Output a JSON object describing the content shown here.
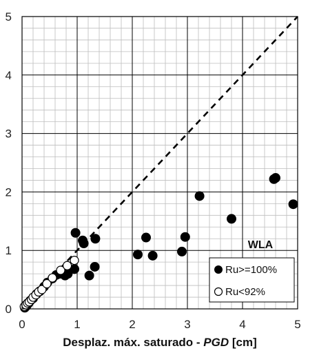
{
  "chart_data": {
    "type": "scatter",
    "title": "",
    "xlabel": {
      "prefix": "Desplaz. máx. saturado - ",
      "italic": "PGD",
      "suffix": " [cm]"
    },
    "ylabel": "",
    "xlim": [
      0,
      5
    ],
    "ylim": [
      0,
      5
    ],
    "x_ticks": [
      "0",
      "1",
      "2",
      "3",
      "4",
      "5"
    ],
    "y_ticks": [
      "0",
      "1",
      "2",
      "3",
      "4",
      "5"
    ],
    "grid": "major and minor (0.2 cm)",
    "reference_line": {
      "style": "dashed",
      "points": [
        [
          0,
          0
        ],
        [
          5,
          5
        ]
      ]
    },
    "annotation": "WLA",
    "legend": {
      "placement": "bottom-right",
      "boxed": true
    },
    "series": [
      {
        "name": "Ru>=100%",
        "marker": "filled-circle",
        "color": "#000000",
        "points": [
          [
            0.05,
            0.02
          ],
          [
            0.08,
            0.05
          ],
          [
            0.1,
            0.08
          ],
          [
            0.12,
            0.1
          ],
          [
            0.15,
            0.14
          ],
          [
            0.2,
            0.18
          ],
          [
            0.26,
            0.25
          ],
          [
            0.32,
            0.3
          ],
          [
            0.4,
            0.38
          ],
          [
            0.46,
            0.45
          ],
          [
            0.55,
            0.52
          ],
          [
            0.62,
            0.58
          ],
          [
            0.68,
            0.6
          ],
          [
            0.78,
            0.57
          ],
          [
            0.83,
            0.6
          ],
          [
            0.95,
            0.68
          ],
          [
            0.97,
            1.3
          ],
          [
            1.1,
            1.17
          ],
          [
            1.12,
            1.12
          ],
          [
            1.22,
            0.57
          ],
          [
            1.32,
            0.72
          ],
          [
            1.33,
            1.2
          ],
          [
            2.1,
            0.93
          ],
          [
            2.25,
            1.22
          ],
          [
            2.37,
            0.91
          ],
          [
            2.9,
            0.98
          ],
          [
            2.96,
            1.23
          ],
          [
            3.22,
            1.93
          ],
          [
            3.8,
            1.54
          ],
          [
            4.57,
            2.22
          ],
          [
            4.6,
            2.24
          ],
          [
            4.92,
            1.79
          ]
        ]
      },
      {
        "name": "Ru<92%",
        "marker": "open-circle",
        "color": "#000000",
        "points": [
          [
            0.04,
            0.04
          ],
          [
            0.07,
            0.07
          ],
          [
            0.1,
            0.1
          ],
          [
            0.13,
            0.12
          ],
          [
            0.17,
            0.16
          ],
          [
            0.2,
            0.2
          ],
          [
            0.25,
            0.24
          ],
          [
            0.3,
            0.29
          ],
          [
            0.36,
            0.33
          ],
          [
            0.45,
            0.43
          ],
          [
            0.55,
            0.53
          ],
          [
            0.7,
            0.66
          ],
          [
            0.82,
            0.74
          ],
          [
            0.95,
            0.83
          ]
        ]
      }
    ]
  }
}
